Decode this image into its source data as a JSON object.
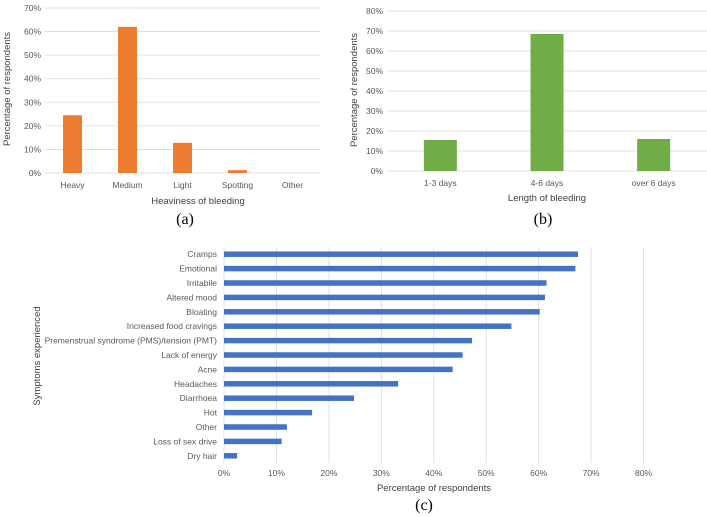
{
  "chart_data": [
    {
      "type": "bar",
      "panel_label": "(a)",
      "categories": [
        "Heavy",
        "Medium",
        "Light",
        "Spotting",
        "Other"
      ],
      "values": [
        24.5,
        62,
        12.8,
        1.2,
        0
      ],
      "xlabel": "Heaviness of bleeding",
      "ylabel": "Percentage of respondents",
      "ylim": [
        0,
        70
      ],
      "yticks": [
        "0%",
        "10%",
        "20%",
        "30%",
        "40%",
        "50%",
        "60%",
        "70%"
      ],
      "color": "#ED7D31",
      "grid": true
    },
    {
      "type": "bar",
      "panel_label": "(b)",
      "categories": [
        "1-3 days",
        "4-6 days",
        "over 6 days"
      ],
      "values": [
        15.5,
        68.5,
        16
      ],
      "xlabel": "Length of bleeding",
      "ylabel": "Percentage of respondents",
      "ylim": [
        0,
        80
      ],
      "yticks": [
        "0%",
        "10%",
        "20%",
        "30%",
        "40%",
        "50%",
        "60%",
        "70%",
        "80%"
      ],
      "color": "#70AD47",
      "grid": true
    },
    {
      "type": "bar",
      "orientation": "horizontal",
      "panel_label": "(c)",
      "categories": [
        "Cramps",
        "Emotional",
        "Irritabile",
        "Altered mood",
        "Bloating",
        "Increased food cravings",
        "Premenstrual syndrome (PMS)/tension (PMT)",
        "Lack of energy",
        "Acne",
        "Headaches",
        "Diarrhoea",
        "Hot",
        "Other",
        "Loss of sex drive",
        "Dry hair"
      ],
      "values": [
        67.5,
        67,
        61.5,
        61.2,
        60.2,
        54.8,
        47.3,
        45.5,
        43.6,
        33.2,
        24.8,
        16.8,
        12,
        11,
        2.5
      ],
      "xlabel": "Percentage of respondents",
      "ylabel": "Symptoms experienced",
      "xlim": [
        0,
        90
      ],
      "xticks": [
        "0%",
        "10%",
        "20%",
        "30%",
        "40%",
        "50%",
        "60%",
        "70%",
        "80%"
      ],
      "color": "#4472C4",
      "grid": true
    }
  ]
}
